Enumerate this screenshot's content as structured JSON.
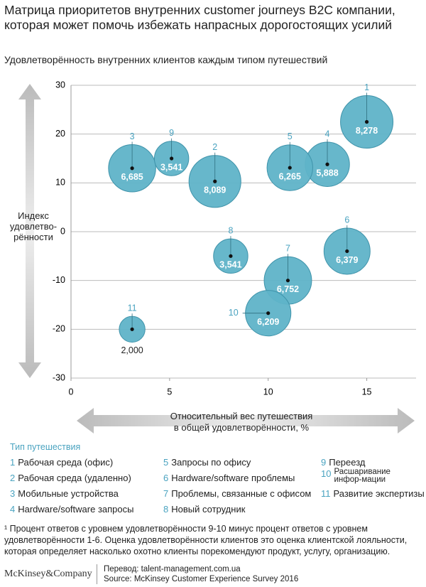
{
  "chart_data": {
    "type": "bubble",
    "title": "Матрица приоритетов внутренних customer journeys B2C компании, которая может помочь избежать напрасных дорогостоящих усилий",
    "subtitle": "Удовлетворённость внутренних клиентов каждым типом путешествий",
    "y_label": [
      "Индекс",
      "удовлетво-",
      "рённости"
    ],
    "x_label": [
      "Относительный вес путешествия",
      "в общей удовлетворённости, %"
    ],
    "series": [
      {
        "color": "#5fb3c8",
        "labels": [
          "1",
          "2",
          "3",
          "4",
          "5",
          "6",
          "7",
          "8",
          "9",
          "10",
          "11"
        ],
        "x": [
          15,
          7.3,
          3.1,
          13,
          11.1,
          14,
          11,
          8.1,
          5.1,
          10,
          3.1
        ],
        "values": [
          22.5,
          10.3,
          13,
          13.8,
          13.1,
          -4,
          -10,
          -5,
          15,
          -16.7,
          -20
        ],
        "sizes": [
          8278,
          8089,
          6685,
          5888,
          6265,
          6379,
          6752,
          3541,
          3541,
          6209,
          2000
        ],
        "value_labels": [
          "8,278",
          "8,089",
          "6,685",
          "5,888",
          "6,265",
          "6,379",
          "6,752",
          "3,541",
          "3,541",
          "6,209",
          "2,000"
        ]
      }
    ],
    "xlim": [
      0,
      17.5
    ],
    "xticks": [
      0,
      5,
      10,
      15
    ],
    "ylim": [
      -30,
      30
    ],
    "yticks": [
      -30,
      -20,
      -10,
      0,
      10,
      20,
      30
    ],
    "grid": true
  },
  "legend": {
    "title": "Тип путешествия",
    "items": [
      {
        "num": "1",
        "label": "Рабочая среда (офис)"
      },
      {
        "num": "2",
        "label": "Рабочая среда (удаленно)"
      },
      {
        "num": "3",
        "label": "Мобильные устройства"
      },
      {
        "num": "4",
        "label": "Hardware/software запросы"
      },
      {
        "num": "5",
        "label": "Запросы по офису"
      },
      {
        "num": "6",
        "label": "Hardware/software проблемы"
      },
      {
        "num": "7",
        "label": "Проблемы, связанные с офисом"
      },
      {
        "num": "8",
        "label": "Новый сотрудник"
      },
      {
        "num": "9",
        "label": "Переезд"
      },
      {
        "num": "10",
        "label": "Расшаривание инфор-мации"
      },
      {
        "num": "11",
        "label": "Развитие экспертизы"
      }
    ]
  },
  "footnote": "¹ Процент ответов с уровнем удовлетворённости 9-10 минус процент ответов с уровнем удовлетворённости 1-6. Оценка удовлетворённости клиентов это оценка клиентской лояльности, которая определяет насколько охотно клиенты порекомендуют продукт, услугу, организацию.",
  "footer": {
    "logo": "McKinsey&Company",
    "translation": "Перевод: talent-management.com.ua",
    "source": "Source: McKinsey Customer Experience Survey 2016"
  }
}
